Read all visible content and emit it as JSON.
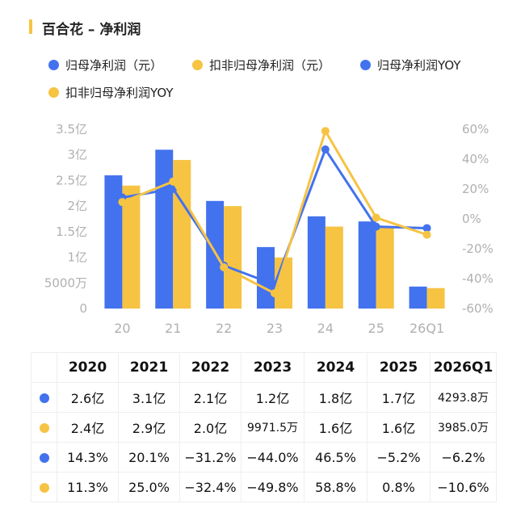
{
  "title": "百合花 – 净利润",
  "colors": {
    "blue": "#4372ee",
    "yellow": "#f6c343",
    "accent_bar": "#f6c343"
  },
  "legend": [
    {
      "label": "归母净利润（元）",
      "color": "#4372ee"
    },
    {
      "label": "扣非归母净利润（元）",
      "color": "#f6c343"
    },
    {
      "label": "归母净利润YOY",
      "color": "#4372ee"
    },
    {
      "label": "扣非归母净利润YOY",
      "color": "#f6c343"
    }
  ],
  "chart_data": {
    "type": "bar",
    "categories": [
      "20",
      "21",
      "22",
      "23",
      "24",
      "25",
      "26Q1"
    ],
    "series": [
      {
        "name": "归母净利润（元）",
        "kind": "bar",
        "axis": "left",
        "unit": "亿",
        "color": "#4372ee",
        "values": [
          2.6,
          3.1,
          2.1,
          1.2,
          1.8,
          1.7,
          0.429
        ]
      },
      {
        "name": "扣非归母净利润（元）",
        "kind": "bar",
        "axis": "left",
        "unit": "亿",
        "color": "#f6c343",
        "values": [
          2.4,
          2.9,
          2.0,
          0.997,
          1.6,
          1.6,
          0.399
        ]
      },
      {
        "name": "归母净利润YOY",
        "kind": "line",
        "axis": "right",
        "unit": "%",
        "color": "#4372ee",
        "values": [
          14.3,
          20.1,
          -31.2,
          -44.0,
          46.5,
          -5.2,
          -6.2
        ]
      },
      {
        "name": "扣非归母净利润YOY",
        "kind": "line",
        "axis": "right",
        "unit": "%",
        "color": "#f6c343",
        "values": [
          11.3,
          25.0,
          -32.4,
          -49.8,
          58.8,
          0.8,
          -10.6
        ]
      }
    ],
    "y_left": {
      "ylim": [
        0,
        3.5
      ],
      "ticks": [
        3.5,
        3,
        2.5,
        2,
        1.5,
        1,
        0.5,
        0
      ],
      "tick_labels": [
        "3.5亿",
        "3亿",
        "2.5亿",
        "2亿",
        "1.5亿",
        "1亿",
        "5000万",
        "0"
      ]
    },
    "y_right": {
      "ylim": [
        -60,
        60
      ],
      "ticks": [
        60,
        40,
        20,
        0,
        -20,
        -40,
        -60
      ],
      "tick_labels": [
        "60%",
        "40%",
        "20%",
        "0%",
        "-20%",
        "-40%",
        "-60%"
      ]
    },
    "grid": false,
    "legend_position": "top"
  },
  "table": {
    "headers": [
      "2020",
      "2021",
      "2022",
      "2023",
      "2024",
      "2025",
      "2026Q1"
    ],
    "rows": [
      {
        "color": "#4372ee",
        "cells": [
          "2.6亿",
          "3.1亿",
          "2.1亿",
          "1.2亿",
          "1.8亿",
          "1.7亿",
          "4293.8万"
        ]
      },
      {
        "color": "#f6c343",
        "cells": [
          "2.4亿",
          "2.9亿",
          "2.0亿",
          "9971.5万",
          "1.6亿",
          "1.6亿",
          "3985.0万"
        ]
      },
      {
        "color": "#4372ee",
        "cells": [
          "14.3%",
          "20.1%",
          "−31.2%",
          "−44.0%",
          "46.5%",
          "−5.2%",
          "−6.2%"
        ]
      },
      {
        "color": "#f6c343",
        "cells": [
          "11.3%",
          "25.0%",
          "−32.4%",
          "−49.8%",
          "58.8%",
          "0.8%",
          "−10.6%"
        ]
      }
    ]
  }
}
